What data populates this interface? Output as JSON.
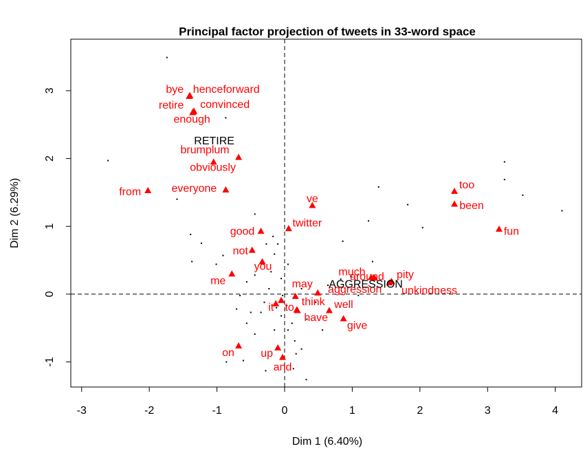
{
  "chart_data": {
    "type": "scatter",
    "title": "Principal factor projection of tweets in 33-word space",
    "xlabel": "Dim 1 (6.40%)",
    "ylabel": "Dim 2 (6.29%)",
    "xlim": [
      -3.16,
      4.39
    ],
    "ylim": [
      -1.37,
      3.76
    ],
    "xticks": [
      -3,
      -2,
      -1,
      0,
      1,
      2,
      3,
      4
    ],
    "yticks": [
      -1,
      0,
      1,
      2,
      3
    ],
    "reflines": {
      "x": 0,
      "y": 0
    },
    "individuals": {
      "color": "#000000",
      "x": [
        -1.74,
        -2.61,
        -0.87,
        -1.59,
        -0.44,
        -1.39,
        -1.23,
        -1.37,
        -0.91,
        -1.01,
        1.39,
        1.82,
        2.04,
        1.24,
        1.3,
        3.52,
        3.25,
        3.25,
        4.1,
        0.86,
        -0.17,
        -0.66,
        -0.71,
        -0.56,
        -0.44,
        -0.61,
        -0.15,
        -0.23,
        -0.3,
        -0.05,
        0.05,
        0.15,
        0.25,
        0.32,
        0.13,
        -0.28,
        0.17,
        -0.44,
        -0.56,
        -0.2,
        -0.05,
        0.05,
        0.25,
        0.46,
        0.64,
        0.83,
        0.98,
        1.09,
        -0.15,
        -0.1,
        -0.27,
        -0.5,
        -0.86,
        -0.35,
        -0.03,
        -0.12,
        0.03,
        0.11,
        0.56,
        0.33
      ],
      "y": [
        3.49,
        1.97,
        2.6,
        1.4,
        1.18,
        0.88,
        0.75,
        0.48,
        0.57,
        0.44,
        1.58,
        1.32,
        0.98,
        1.08,
        0.48,
        1.46,
        1.69,
        1.95,
        1.23,
        0.78,
        0.85,
        -0.02,
        -0.22,
        -0.43,
        -0.59,
        -0.98,
        -0.53,
        0.08,
        -0.12,
        -0.32,
        -0.53,
        -0.69,
        -0.81,
        -1.26,
        -1.1,
        -1.13,
        -0.88,
        0.28,
        0.18,
        0.33,
        0.23,
        0.44,
        0.08,
        -0.12,
        0.13,
        0.22,
        0.26,
        -0.02,
        0.59,
        0.74,
        0.74,
        -0.27,
        -1.0,
        -0.27,
        -0.02,
        -0.2,
        -0.17,
        -0.43,
        -0.53,
        -0.37
      ]
    },
    "words": {
      "color": "#ff0000",
      "labels": [
        "bye",
        "henceforward",
        "retire",
        "convinced",
        "enough",
        "brumplum",
        "obviously",
        "everyone",
        "from",
        "ve",
        "twitter",
        "good",
        "not",
        "you",
        "me",
        "may",
        "it",
        "to",
        "think",
        "well",
        "have",
        "give",
        "much",
        "around",
        "pity",
        "aggression",
        "unkindness",
        "on",
        "up",
        "and",
        "too",
        "been",
        "fun"
      ],
      "x": [
        -1.41,
        -1.4,
        -1.35,
        -1.34,
        -1.36,
        -0.68,
        -1.05,
        -0.87,
        -2.02,
        0.41,
        0.06,
        -0.35,
        -0.48,
        -0.33,
        -0.78,
        0.16,
        -0.13,
        -0.05,
        0.18,
        0.66,
        0.19,
        0.87,
        1.28,
        1.33,
        1.58,
        0.49,
        1.55,
        -0.68,
        -0.1,
        -0.03,
        2.51,
        2.51,
        3.17
      ],
      "y": [
        2.92,
        2.93,
        2.69,
        2.7,
        2.68,
        2.02,
        1.95,
        1.54,
        1.53,
        1.31,
        0.97,
        0.93,
        0.65,
        0.48,
        0.3,
        -0.03,
        -0.14,
        -0.09,
        -0.23,
        -0.24,
        -0.24,
        -0.36,
        0.25,
        0.24,
        0.19,
        0.02,
        0.17,
        -0.76,
        -0.79,
        -0.93,
        1.52,
        1.33,
        0.96
      ]
    },
    "supplementary": {
      "color": "#000000",
      "labels": [
        "RETIRE",
        "AGGRESSION"
      ],
      "x": [
        -1.04,
        1.2
      ],
      "y": [
        2.25,
        0.14
      ]
    }
  }
}
